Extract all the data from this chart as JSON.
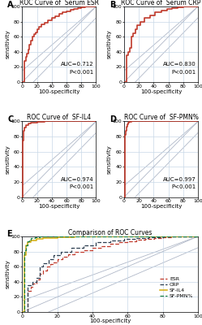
{
  "panels": {
    "A": {
      "title": "ROC Curve of  Serum ESR",
      "auc": "AUC=0.712",
      "pval": "P<0.001",
      "curve_color": "#c0392b",
      "roc_x": [
        0,
        3,
        3,
        5,
        5,
        6,
        6,
        8,
        8,
        10,
        10,
        12,
        12,
        14,
        14,
        16,
        16,
        18,
        18,
        20,
        20,
        23,
        23,
        26,
        26,
        30,
        30,
        35,
        35,
        40,
        40,
        45,
        45,
        50,
        50,
        55,
        55,
        60,
        60,
        65,
        65,
        70,
        70,
        75,
        75,
        80,
        80,
        85,
        85,
        90,
        90,
        95,
        95,
        100
      ],
      "roc_y": [
        0,
        0,
        28,
        28,
        33,
        33,
        38,
        38,
        43,
        43,
        50,
        50,
        55,
        55,
        60,
        60,
        63,
        63,
        66,
        66,
        70,
        70,
        73,
        73,
        76,
        76,
        79,
        79,
        82,
        82,
        85,
        85,
        87,
        87,
        90,
        90,
        92,
        92,
        94,
        94,
        96,
        96,
        97,
        97,
        98,
        98,
        99,
        99,
        100,
        100,
        100,
        100,
        100,
        100
      ]
    },
    "B": {
      "title": "ROC Curve of  Serum CRP",
      "auc": "AUC=0.830",
      "pval": "P<0.001",
      "curve_color": "#c0392b",
      "roc_x": [
        0,
        3,
        3,
        6,
        6,
        8,
        8,
        10,
        10,
        12,
        12,
        15,
        15,
        18,
        18,
        22,
        22,
        28,
        28,
        35,
        35,
        42,
        42,
        50,
        50,
        58,
        58,
        65,
        65,
        72,
        72,
        80,
        80,
        88,
        88,
        95,
        95,
        100
      ],
      "roc_y": [
        0,
        0,
        35,
        35,
        40,
        40,
        45,
        45,
        60,
        60,
        65,
        65,
        70,
        70,
        75,
        75,
        80,
        80,
        85,
        85,
        88,
        88,
        92,
        92,
        95,
        95,
        97,
        97,
        98,
        98,
        99,
        99,
        100,
        100,
        100,
        100,
        100,
        100
      ]
    },
    "C": {
      "title": "ROC Curve of  SF-IL4",
      "auc": "AUC=0.974",
      "pval": "P<0.001",
      "curve_color": "#c0392b",
      "roc_x": [
        0,
        1,
        1,
        2,
        2,
        3,
        3,
        5,
        5,
        8,
        8,
        12,
        12,
        20,
        20,
        30,
        30,
        40,
        40,
        50,
        50,
        60,
        60,
        70,
        70,
        80,
        80,
        90,
        90,
        100
      ],
      "roc_y": [
        0,
        0,
        75,
        75,
        88,
        88,
        92,
        92,
        95,
        95,
        97,
        97,
        98,
        98,
        99,
        99,
        100,
        100,
        100,
        100,
        100,
        100,
        100,
        100,
        100,
        100,
        100,
        100,
        100,
        100
      ]
    },
    "D": {
      "title": "ROC Curve of  SF-PMN%",
      "auc": "AUC=0.997",
      "pval": "P<0.001",
      "curve_color": "#c0392b",
      "roc_x": [
        0,
        1,
        1,
        2,
        2,
        3,
        3,
        4,
        4,
        5,
        5,
        7,
        7,
        10,
        10,
        15,
        15,
        20,
        20,
        30,
        30,
        40,
        40,
        50,
        50,
        60,
        60,
        70,
        70,
        80,
        80,
        90,
        90,
        100
      ],
      "roc_y": [
        0,
        0,
        82,
        82,
        88,
        88,
        93,
        93,
        96,
        96,
        98,
        98,
        99,
        99,
        100,
        100,
        100,
        100,
        100,
        100,
        100,
        100,
        100,
        100,
        100,
        100,
        100,
        100,
        100,
        100,
        100,
        100,
        100,
        100
      ]
    }
  },
  "panel_E": {
    "title": "Comparison of ROC Curves",
    "curves": {
      "ESR": {
        "color": "#c0392b",
        "style": "--",
        "lw": 0.9,
        "x": [
          0,
          3,
          3,
          5,
          5,
          6,
          6,
          8,
          8,
          10,
          10,
          12,
          12,
          14,
          14,
          16,
          16,
          18,
          18,
          20,
          20,
          23,
          23,
          26,
          26,
          30,
          30,
          35,
          35,
          40,
          40,
          45,
          45,
          50,
          50,
          55,
          55,
          60,
          60,
          65,
          65,
          70,
          70,
          75,
          75,
          80,
          80,
          85,
          85,
          90,
          90,
          95,
          95,
          100
        ],
        "y": [
          0,
          0,
          28,
          28,
          33,
          33,
          38,
          38,
          43,
          43,
          50,
          50,
          55,
          55,
          60,
          60,
          63,
          63,
          66,
          66,
          70,
          70,
          73,
          73,
          76,
          76,
          79,
          79,
          82,
          82,
          85,
          85,
          87,
          87,
          90,
          90,
          92,
          92,
          94,
          94,
          96,
          96,
          97,
          97,
          98,
          98,
          99,
          99,
          100,
          100,
          100,
          100,
          100,
          100
        ]
      },
      "CRP": {
        "color": "#2c3e50",
        "style": "--",
        "lw": 0.9,
        "x": [
          0,
          3,
          3,
          6,
          6,
          8,
          8,
          10,
          10,
          12,
          12,
          15,
          15,
          18,
          18,
          22,
          22,
          28,
          28,
          35,
          35,
          42,
          42,
          50,
          50,
          58,
          58,
          65,
          65,
          72,
          72,
          80,
          80,
          88,
          88,
          95,
          95,
          100
        ],
        "y": [
          0,
          0,
          35,
          35,
          40,
          40,
          45,
          45,
          60,
          60,
          65,
          65,
          70,
          70,
          75,
          75,
          80,
          80,
          85,
          85,
          88,
          88,
          92,
          92,
          95,
          95,
          97,
          97,
          98,
          98,
          99,
          99,
          100,
          100,
          100,
          100,
          100,
          100
        ]
      },
      "SF-IL4": {
        "color": "#d4ac0d",
        "style": "-",
        "lw": 1.1,
        "x": [
          0,
          1,
          1,
          2,
          2,
          3,
          3,
          5,
          5,
          8,
          8,
          12,
          12,
          20,
          20,
          30,
          30,
          40,
          40,
          50,
          50,
          60,
          60,
          70,
          70,
          80,
          80,
          90,
          90,
          100
        ],
        "y": [
          0,
          0,
          75,
          75,
          88,
          88,
          92,
          92,
          95,
          95,
          97,
          97,
          98,
          98,
          99,
          99,
          100,
          100,
          100,
          100,
          100,
          100,
          100,
          100,
          100,
          100,
          100,
          100,
          100,
          100
        ]
      },
      "SF-PMN%": {
        "color": "#1e8449",
        "style": "--",
        "lw": 0.9,
        "x": [
          0,
          1,
          1,
          2,
          2,
          3,
          3,
          4,
          4,
          5,
          5,
          7,
          7,
          10,
          10,
          15,
          15,
          20,
          20,
          30,
          30,
          40,
          40,
          50,
          50,
          60,
          60,
          70,
          70,
          80,
          80,
          90,
          90,
          100
        ],
        "y": [
          0,
          0,
          82,
          82,
          88,
          88,
          93,
          93,
          96,
          96,
          98,
          98,
          99,
          99,
          100,
          100,
          100,
          100,
          100,
          100,
          100,
          100,
          100,
          100,
          100,
          100,
          100,
          100,
          100,
          100,
          100,
          100,
          100,
          100
        ]
      }
    }
  },
  "bg_color": "#ffffff",
  "grid_color": "#c8d8e8",
  "diagonal_color": "#b0b8c8",
  "conf_line_color": "#b0b8c8",
  "xlabel": "100-specificity",
  "ylabel": "sensitivity",
  "tick_fontsize": 4.5,
  "label_fontsize": 5,
  "title_fontsize": 5.5,
  "auc_fontsize": 5,
  "legend_fontsize": 4.5,
  "panel_label_fontsize": 7
}
